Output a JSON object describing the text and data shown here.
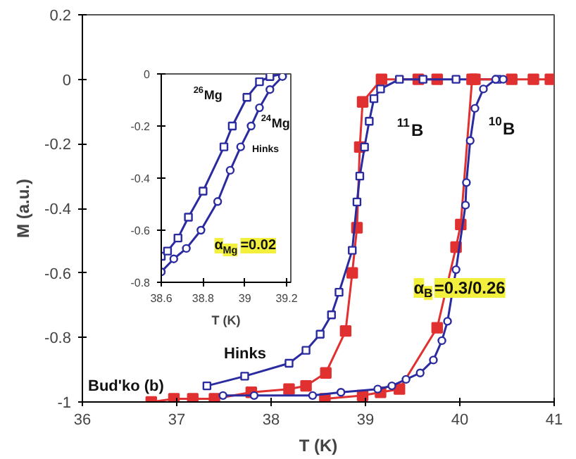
{
  "chart_data": [
    {
      "type": "line",
      "xlabel": "T (K)",
      "ylabel": "M (a.u.)",
      "xlim": [
        36,
        41
      ],
      "ylim": [
        -1,
        0.2
      ],
      "xticks": [
        36,
        37,
        38,
        39,
        40,
        41
      ],
      "yticks": [
        {
          "value": 0.2,
          "label": "0.2"
        },
        0,
        {
          "value": -0.2,
          "label": "-0.2"
        },
        {
          "value": -0.4,
          "label": "-0.4"
        },
        {
          "value": -0.6,
          "label": "-0.6"
        },
        {
          "value": -0.8,
          "label": "-0.8"
        },
        -1
      ],
      "grid": false,
      "series": [
        {
          "color": "#e0302f",
          "marker": "square",
          "x": [
            36.73,
            36.97,
            37.17,
            37.4,
            37.79,
            38.19,
            38.37,
            38.58,
            38.79,
            38.86,
            38.91,
            38.94,
            38.97,
            39.17,
            39.56,
            39.76
          ],
          "values": [
            -1,
            -0.99,
            -0.99,
            -0.99,
            -0.97,
            -0.96,
            -0.95,
            -0.91,
            -0.78,
            -0.6,
            -0.46,
            -0.21,
            -0.07,
            0,
            0,
            0
          ]
        },
        {
          "color": "#2b2ba0",
          "marker": "square",
          "x": [
            37.32,
            37.72,
            38.19,
            38.37,
            38.52,
            38.64,
            38.72,
            38.86,
            38.91,
            38.94,
            38.99,
            39.04,
            39.09,
            39.16,
            39.36,
            39.61,
            39.96,
            40.4
          ],
          "values": [
            -0.95,
            -0.92,
            -0.88,
            -0.84,
            -0.79,
            -0.73,
            -0.66,
            -0.53,
            -0.38,
            -0.3,
            -0.21,
            -0.13,
            -0.06,
            -0.03,
            0,
            0,
            0,
            0
          ]
        },
        {
          "color": "#e0302f",
          "marker": "square",
          "x": [
            38.57,
            38.97,
            39.16,
            39.36,
            39.76,
            39.96,
            40.01,
            40.13,
            40.16,
            40.55,
            40.78,
            40.96
          ],
          "values": [
            -0.99,
            -0.98,
            -0.97,
            -0.96,
            -0.77,
            -0.52,
            -0.45,
            0,
            0,
            0,
            0,
            0
          ]
        },
        {
          "color": "#2b2ba0",
          "marker": "circle",
          "x": [
            37.49,
            37.82,
            38.44,
            38.74,
            39.13,
            39.28,
            39.43,
            39.58,
            39.72,
            39.81,
            39.87,
            39.96,
            40.06,
            40.07,
            40.11,
            40.16,
            40.25,
            40.38,
            40.46
          ],
          "values": [
            -0.98,
            -0.98,
            -0.98,
            -0.97,
            -0.96,
            -0.95,
            -0.93,
            -0.91,
            -0.87,
            -0.81,
            -0.75,
            -0.59,
            -0.39,
            -0.32,
            -0.19,
            -0.09,
            -0.03,
            0,
            0
          ]
        }
      ],
      "annotations": [
        "$^{11}$B",
        "$^{10}$B",
        "Hinks",
        "Bud'ko (b)",
        "α$_{B}$=0.3/0.26"
      ]
    },
    {
      "type": "line",
      "xlabel": "T (K)",
      "xlim": [
        38.6,
        39.22
      ],
      "ylim": [
        -0.8,
        0
      ],
      "xticks": [
        38.6,
        38.8,
        39,
        39.2
      ],
      "yticks": [
        0,
        {
          "value": -0.2,
          "label": "-0.2"
        },
        {
          "value": -0.4,
          "label": "-0.4"
        },
        {
          "value": -0.6,
          "label": "-0.6"
        },
        {
          "value": -0.8,
          "label": "-0.8"
        }
      ],
      "grid": false,
      "series": [
        {
          "color": "#2b2ba0",
          "marker": "square",
          "x": [
            38.6,
            38.63,
            38.68,
            38.73,
            38.8,
            38.9,
            38.94,
            39.01,
            39.07,
            39.12,
            39.18
          ],
          "values": [
            -0.7,
            -0.68,
            -0.63,
            -0.55,
            -0.45,
            -0.28,
            -0.2,
            -0.09,
            -0.03,
            -0.01,
            0
          ]
        },
        {
          "color": "#2b2ba0",
          "marker": "circle",
          "x": [
            38.6,
            38.66,
            38.72,
            38.79,
            38.87,
            38.93,
            38.98,
            39.03,
            39.07,
            39.12,
            39.18
          ],
          "values": [
            -0.76,
            -0.71,
            -0.67,
            -0.6,
            -0.49,
            -0.37,
            -0.28,
            -0.2,
            -0.13,
            -0.06,
            -0.01
          ]
        }
      ],
      "annotations": [
        "$^{26}$Mg",
        "$^{24}$Mg",
        "Hinks",
        "α$_{Mg}$=0.02"
      ]
    }
  ]
}
